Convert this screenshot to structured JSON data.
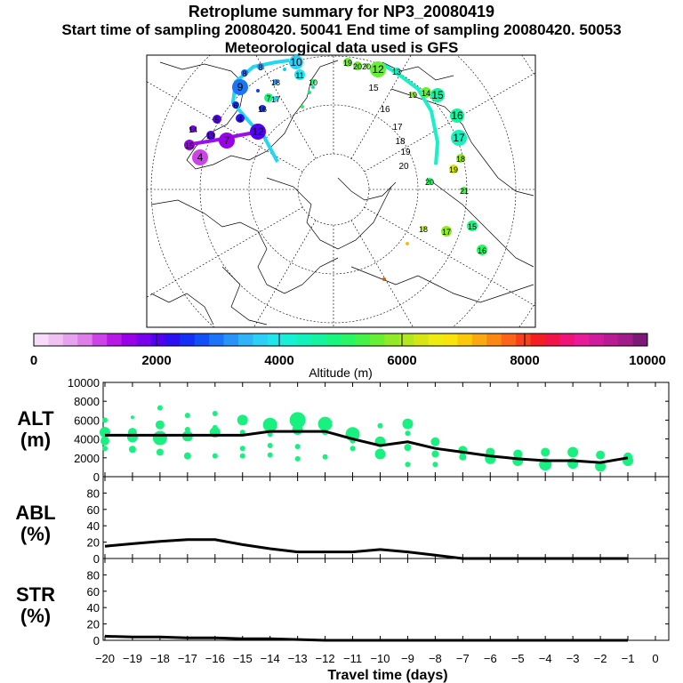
{
  "header": {
    "title": "Retroplume summary for NP3_20080419",
    "sampling_line": "Start time of sampling 20080420. 50041     End time of sampling 20080420. 50053",
    "met_line": "Meteorological data used is GFS"
  },
  "colorbar": {
    "tick_labels": [
      "0",
      "2000",
      "4000",
      "6000",
      "8000",
      "10000"
    ],
    "tick_values": [
      0,
      2000,
      4000,
      6000,
      8000,
      10000
    ],
    "label": "Altitude (m)",
    "colors": [
      "#f6dcf6",
      "#efc2f2",
      "#e6a2ef",
      "#de7ee9",
      "#cc44e8",
      "#b81ae6",
      "#9a00e8",
      "#7800ec",
      "#5200ef",
      "#2c10f2",
      "#1430f4",
      "#1050f6",
      "#1c74f8",
      "#2894f8",
      "#30b4f8",
      "#2cd0f4",
      "#20e6ec",
      "#18f0d6",
      "#14f2bc",
      "#14f4a0",
      "#18f680",
      "#28f664",
      "#44f248",
      "#68ee34",
      "#90ea28",
      "#b4e81e",
      "#d6e614",
      "#ecec10",
      "#f8e40c",
      "#fcc80c",
      "#fca810",
      "#fc8814",
      "#fc6418",
      "#f8401c",
      "#f41e22",
      "#f01448",
      "#f01478",
      "#e81c98",
      "#d01c9c",
      "#b81c94",
      "#a01c8a",
      "#7c1a78"
    ]
  },
  "map": {
    "trajectory_labels": [
      "10",
      "11",
      "10",
      "8",
      "9",
      "8",
      "7",
      "6",
      "4",
      "5",
      "7",
      "4",
      "12",
      "13",
      "14",
      "15",
      "16",
      "17",
      "18",
      "19",
      "20",
      "12",
      "13",
      "14",
      "15",
      "16",
      "17",
      "18",
      "19",
      "20",
      "21",
      "15",
      "16",
      "17",
      "18",
      "19",
      "20"
    ]
  },
  "panels": [
    {
      "label_line1": "ALT",
      "label_line2": "(m)",
      "y_ticks": [
        "10000",
        "8000",
        "6000",
        "4000",
        "2000",
        "0"
      ],
      "y_tick_values": [
        10000,
        8000,
        6000,
        4000,
        2000,
        0
      ]
    },
    {
      "label_line1": "ABL",
      "label_line2": "(%)",
      "y_ticks": [
        "80",
        "60",
        "40",
        "20",
        "0"
      ],
      "y_tick_values": [
        80,
        60,
        40,
        20,
        0
      ]
    },
    {
      "label_line1": "STR",
      "label_line2": "(%)",
      "y_ticks": [
        "80",
        "60",
        "40",
        "20",
        "0"
      ],
      "y_tick_values": [
        80,
        60,
        40,
        20,
        0
      ]
    }
  ],
  "xaxis": {
    "tick_labels": [
      "−20",
      "−19",
      "−18",
      "−17",
      "−16",
      "−15",
      "−14",
      "−13",
      "−12",
      "−11",
      "−10",
      "−9",
      "−8",
      "−7",
      "−6",
      "−5",
      "−4",
      "−3",
      "−2",
      "−1",
      "0"
    ],
    "title": "Travel time (days)"
  },
  "chart_data": [
    {
      "type": "line",
      "name": "ALT",
      "x": [
        -20,
        -19,
        -18,
        -17,
        -16,
        -15,
        -14,
        -13,
        -12,
        -11,
        -10,
        -9,
        -8,
        -7,
        -6,
        -5,
        -4,
        -3,
        -2,
        -1
      ],
      "values": [
        4400,
        4400,
        4400,
        4400,
        4400,
        4400,
        4800,
        4800,
        4800,
        4000,
        3300,
        3700,
        3000,
        2600,
        2200,
        1900,
        1700,
        1700,
        1500,
        2000
      ],
      "clusters": [
        {
          "x": -20,
          "alts": [
            4700,
            3800,
            6000,
            3000
          ],
          "sizes": [
            6,
            5,
            3,
            3
          ]
        },
        {
          "x": -19,
          "alts": [
            4200,
            4700,
            2900,
            6300
          ],
          "sizes": [
            6,
            5,
            4,
            2
          ]
        },
        {
          "x": -18,
          "alts": [
            4100,
            5500,
            2600,
            7300
          ],
          "sizes": [
            8,
            5,
            4,
            3
          ]
        },
        {
          "x": -17,
          "alts": [
            4300,
            6500,
            2200,
            5000
          ],
          "sizes": [
            6,
            3,
            4,
            3
          ]
        },
        {
          "x": -16,
          "alts": [
            4700,
            6700,
            2200,
            5200
          ],
          "sizes": [
            6,
            3,
            3,
            3
          ]
        },
        {
          "x": -15,
          "alts": [
            6000,
            2200,
            3000,
            4700
          ],
          "sizes": [
            6,
            3,
            3,
            3
          ]
        },
        {
          "x": -14,
          "alts": [
            5500,
            3300,
            2300,
            4500
          ],
          "sizes": [
            8,
            3,
            3,
            3
          ]
        },
        {
          "x": -13,
          "alts": [
            6000,
            5000,
            3200,
            1900
          ],
          "sizes": [
            9,
            6,
            3,
            3
          ]
        },
        {
          "x": -12,
          "alts": [
            5600,
            4800,
            2100
          ],
          "sizes": [
            8,
            4,
            3
          ]
        },
        {
          "x": -11,
          "alts": [
            4500,
            3000,
            3800
          ],
          "sizes": [
            8,
            3,
            3
          ]
        },
        {
          "x": -10,
          "alts": [
            3700,
            2400,
            5400
          ],
          "sizes": [
            6,
            6,
            3
          ]
        },
        {
          "x": -9,
          "alts": [
            5600,
            3100,
            1300,
            4600
          ],
          "sizes": [
            6,
            4,
            3,
            3
          ]
        },
        {
          "x": -8,
          "alts": [
            3700,
            2400,
            1300
          ],
          "sizes": [
            5,
            4,
            3
          ]
        },
        {
          "x": -7,
          "alts": [
            2800,
            2100
          ],
          "sizes": [
            5,
            4
          ]
        },
        {
          "x": -6,
          "alts": [
            2600,
            1900
          ],
          "sizes": [
            5,
            6
          ]
        },
        {
          "x": -5,
          "alts": [
            2400,
            1700
          ],
          "sizes": [
            5,
            6
          ]
        },
        {
          "x": -4,
          "alts": [
            2600,
            1300
          ],
          "sizes": [
            5,
            7
          ]
        },
        {
          "x": -3,
          "alts": [
            2600,
            1400
          ],
          "sizes": [
            6,
            6
          ]
        },
        {
          "x": -2,
          "alts": [
            2300,
            1100
          ],
          "sizes": [
            5,
            6
          ]
        },
        {
          "x": -1,
          "alts": [
            2100,
            1700
          ],
          "sizes": [
            5,
            6
          ]
        }
      ],
      "ylim": [
        0,
        10000
      ],
      "xlim": [
        -20,
        0
      ],
      "ylabel": "ALT (m)"
    },
    {
      "type": "line",
      "name": "ABL",
      "x": [
        -20,
        -19,
        -18,
        -17,
        -16,
        -15,
        -14,
        -13,
        -12,
        -11,
        -10,
        -9,
        -8,
        -7,
        -6,
        -5,
        -4,
        -3,
        -2,
        -1
      ],
      "values": [
        15,
        18,
        21,
        23,
        23,
        17,
        12,
        8,
        8,
        8,
        11,
        8,
        4,
        0,
        0,
        0,
        0,
        0,
        0,
        0
      ],
      "ylim": [
        0,
        100
      ],
      "xlim": [
        -20,
        0
      ],
      "ylabel": "ABL (%)"
    },
    {
      "type": "line",
      "name": "STR",
      "x": [
        -20,
        -19,
        -18,
        -17,
        -16,
        -15,
        -14,
        -13,
        -12,
        -11,
        -10,
        -9,
        -8,
        -7,
        -6,
        -5,
        -4,
        -3,
        -2,
        -1
      ],
      "values": [
        5,
        4,
        4,
        3,
        3,
        2,
        2,
        1,
        0,
        0,
        0,
        0,
        0,
        0,
        0,
        0,
        0,
        0,
        0,
        0
      ],
      "ylim": [
        0,
        100
      ],
      "xlim": [
        -20,
        0
      ],
      "ylabel": "STR (%)",
      "xlabel": "Travel time (days)"
    }
  ]
}
